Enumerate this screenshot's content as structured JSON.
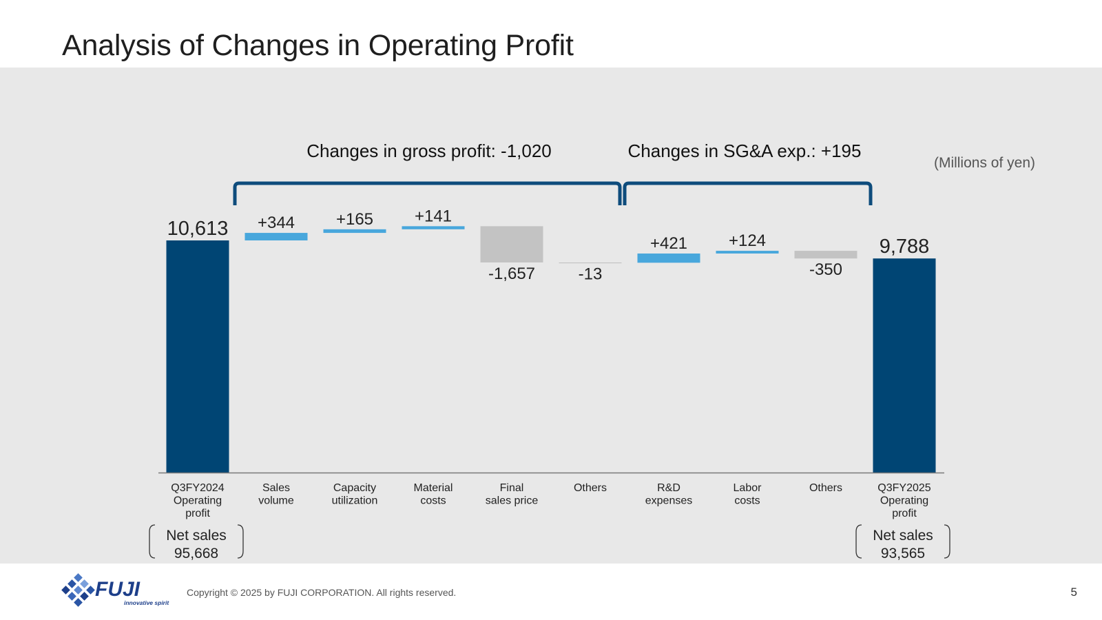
{
  "slide": {
    "title": "Analysis of Changes in Operating Profit",
    "unit_note": "(Millions of yen)",
    "copyright": "Copyright © 2025 by FUJI CORPORATION. All rights reserved.",
    "page_number": "5",
    "logo": {
      "name": "FUJI",
      "tagline": "innovative spirit"
    }
  },
  "chart_data": {
    "type": "waterfall",
    "title": "Analysis of Changes in Operating Profit",
    "unit": "(Millions of yen)",
    "steps": [
      {
        "label": [
          "Q3FY2024",
          "Operating",
          "profit"
        ],
        "value": 10613,
        "kind": "total",
        "display": "10,613"
      },
      {
        "label": [
          "Sales",
          "volume"
        ],
        "value": 344,
        "kind": "delta",
        "display": "+344"
      },
      {
        "label": [
          "Capacity",
          "utilization"
        ],
        "value": 165,
        "kind": "delta",
        "display": "+165"
      },
      {
        "label": [
          "Material",
          "costs"
        ],
        "value": 141,
        "kind": "delta",
        "display": "+141"
      },
      {
        "label": [
          "Final",
          "sales price"
        ],
        "value": -1657,
        "kind": "delta",
        "display": "-1,657"
      },
      {
        "label": [
          "Others"
        ],
        "value": -13,
        "kind": "delta",
        "display": "-13"
      },
      {
        "label": [
          "R&D",
          "expenses"
        ],
        "value": 421,
        "kind": "delta",
        "display": "+421"
      },
      {
        "label": [
          "Labor",
          "costs"
        ],
        "value": 124,
        "kind": "delta",
        "display": "+124"
      },
      {
        "label": [
          "Others"
        ],
        "value": -350,
        "kind": "delta",
        "display": "-350"
      },
      {
        "label": [
          "Q3FY2025",
          "Operating",
          "profit"
        ],
        "value": 9788,
        "kind": "total",
        "display": "9,788"
      }
    ],
    "groups": [
      {
        "label": "Changes in gross profit: -1,020",
        "from_step": 1,
        "to_step": 5
      },
      {
        "label": "Changes in SG&A exp.: +195",
        "from_step": 6,
        "to_step": 8
      }
    ],
    "net_sales": [
      {
        "step": 0,
        "label": "Net sales",
        "value": "95,668"
      },
      {
        "step": 9,
        "label": "Net sales",
        "value": "93,565"
      }
    ],
    "colors": {
      "total": "#004574",
      "increase": "#48a7dc",
      "decrease": "#c3c3c3",
      "bracket": "#0e4c7c"
    }
  }
}
